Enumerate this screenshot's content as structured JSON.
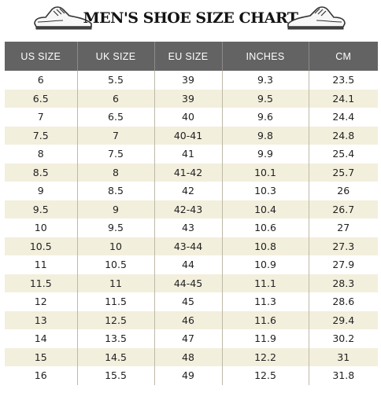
{
  "title": "MEN'S SHOE SIZE CHART",
  "icons": {
    "left": "shoe-icon",
    "right": "shoe-icon"
  },
  "colors": {
    "header_bg": "#636363",
    "stripe": "#f3efdd"
  },
  "table": {
    "headers": [
      "US SIZE",
      "UK SIZE",
      "EU SIZE",
      "INCHES",
      "CM"
    ],
    "rows": [
      [
        "6",
        "5.5",
        "39",
        "9.3",
        "23.5"
      ],
      [
        "6.5",
        "6",
        "39",
        "9.5",
        "24.1"
      ],
      [
        "7",
        "6.5",
        "40",
        "9.6",
        "24.4"
      ],
      [
        "7.5",
        "7",
        "40-41",
        "9.8",
        "24.8"
      ],
      [
        "8",
        "7.5",
        "41",
        "9.9",
        "25.4"
      ],
      [
        "8.5",
        "8",
        "41-42",
        "10.1",
        "25.7"
      ],
      [
        "9",
        "8.5",
        "42",
        "10.3",
        "26"
      ],
      [
        "9.5",
        "9",
        "42-43",
        "10.4",
        "26.7"
      ],
      [
        "10",
        "9.5",
        "43",
        "10.6",
        "27"
      ],
      [
        "10.5",
        "10",
        "43-44",
        "10.8",
        "27.3"
      ],
      [
        "11",
        "10.5",
        "44",
        "10.9",
        "27.9"
      ],
      [
        "11.5",
        "11",
        "44-45",
        "11.1",
        "28.3"
      ],
      [
        "12",
        "11.5",
        "45",
        "11.3",
        "28.6"
      ],
      [
        "13",
        "12.5",
        "46",
        "11.6",
        "29.4"
      ],
      [
        "14",
        "13.5",
        "47",
        "11.9",
        "30.2"
      ],
      [
        "15",
        "14.5",
        "48",
        "12.2",
        "31"
      ],
      [
        "16",
        "15.5",
        "49",
        "12.5",
        "31.8"
      ]
    ]
  }
}
